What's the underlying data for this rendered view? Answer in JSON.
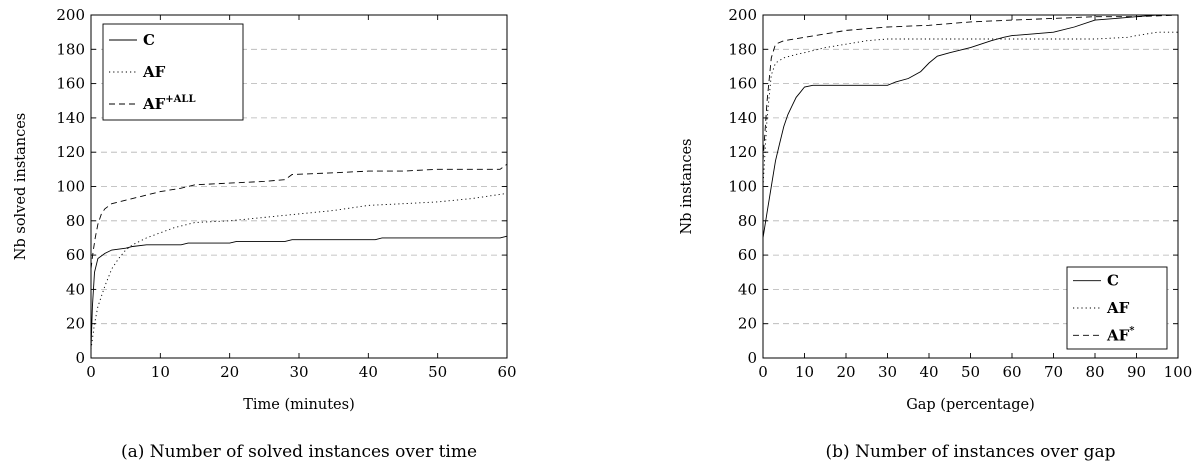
{
  "chart_data": [
    {
      "type": "line",
      "caption": "(a) Number of solved instances over time",
      "xlabel": "Time (minutes)",
      "ylabel": "Nb solved instances",
      "xlim": [
        0,
        60
      ],
      "ylim": [
        0,
        200
      ],
      "xticks": [
        "0",
        "10",
        "20",
        "30",
        "40",
        "50",
        "60"
      ],
      "yticks": [
        "0",
        "20",
        "40",
        "60",
        "80",
        "100",
        "120",
        "140",
        "160",
        "180",
        "200"
      ],
      "grid": "horizontal dashed",
      "legend_position": "top-left",
      "series": [
        {
          "name": "C",
          "style": "solid",
          "x": [
            0,
            0.2,
            0.5,
            1,
            2,
            3,
            5,
            6,
            8,
            10,
            13,
            14,
            20,
            21,
            28,
            29,
            35,
            41,
            42,
            50,
            59,
            60
          ],
          "y": [
            5,
            30,
            50,
            58,
            61,
            63,
            64,
            65,
            66,
            66,
            66,
            67,
            67,
            68,
            68,
            69,
            69,
            69,
            70,
            70,
            70,
            71
          ]
        },
        {
          "name": "AF",
          "style": "dotted",
          "x": [
            0,
            0.5,
            1,
            2,
            3,
            4,
            5,
            6,
            8,
            10,
            12,
            15,
            20,
            25,
            30,
            35,
            40,
            45,
            50,
            55,
            60
          ],
          "y": [
            5,
            20,
            30,
            42,
            52,
            58,
            63,
            66,
            70,
            73,
            76,
            79,
            80,
            82,
            84,
            86,
            89,
            90,
            91,
            93,
            96
          ]
        },
        {
          "name": "AF",
          "name_sup": "+ALL",
          "style": "dashed",
          "x": [
            0,
            0.3,
            0.6,
            1,
            1.5,
            2,
            3,
            5,
            7,
            10,
            13,
            15,
            20,
            25,
            28,
            29,
            35,
            40,
            45,
            50,
            55,
            59,
            60
          ],
          "y": [
            52,
            62,
            70,
            78,
            84,
            87,
            90,
            92,
            94,
            97,
            99,
            101,
            102,
            103,
            104,
            107,
            108,
            109,
            109,
            110,
            110,
            110,
            113
          ]
        }
      ]
    },
    {
      "type": "line",
      "caption": "(b) Number of instances over gap",
      "xlabel": "Gap (percentage)",
      "ylabel": "Nb instances",
      "xlim": [
        0,
        100
      ],
      "ylim": [
        0,
        200
      ],
      "xticks": [
        "0",
        "10",
        "20",
        "30",
        "40",
        "50",
        "60",
        "70",
        "80",
        "90",
        "100"
      ],
      "yticks": [
        "0",
        "20",
        "40",
        "60",
        "80",
        "100",
        "120",
        "140",
        "160",
        "180",
        "200"
      ],
      "grid": "horizontal dashed",
      "legend_position": "bottom-right",
      "series": [
        {
          "name": "C",
          "style": "solid",
          "x": [
            0,
            1,
            2,
            3,
            4,
            5,
            6,
            7,
            8,
            9,
            10,
            12,
            15,
            20,
            25,
            30,
            32,
            35,
            38,
            40,
            42,
            45,
            50,
            55,
            58,
            60,
            65,
            70,
            75,
            80,
            85,
            90,
            95,
            100
          ],
          "y": [
            70,
            85,
            100,
            115,
            125,
            135,
            142,
            147,
            152,
            155,
            158,
            159,
            159,
            159,
            159,
            159,
            161,
            163,
            167,
            172,
            176,
            178,
            181,
            185,
            187,
            188,
            189,
            190,
            193,
            197,
            198,
            199,
            200,
            200
          ]
        },
        {
          "name": "AF",
          "style": "dotted",
          "x": [
            0,
            1,
            2,
            3,
            5,
            8,
            10,
            15,
            20,
            25,
            30,
            40,
            50,
            60,
            70,
            80,
            88,
            90,
            95,
            100
          ],
          "y": [
            100,
            140,
            165,
            172,
            175,
            177,
            178,
            181,
            183,
            185,
            186,
            186,
            186,
            186,
            186,
            186,
            187,
            188,
            190,
            190
          ]
        },
        {
          "name": "AF",
          "name_sup": "*",
          "style": "dashed",
          "x": [
            0,
            1,
            2,
            3,
            5,
            10,
            15,
            20,
            30,
            40,
            50,
            60,
            70,
            80,
            90,
            100
          ],
          "y": [
            115,
            150,
            175,
            183,
            185,
            187,
            189,
            191,
            193,
            194,
            196,
            197,
            198,
            199,
            199,
            200
          ]
        }
      ]
    }
  ]
}
